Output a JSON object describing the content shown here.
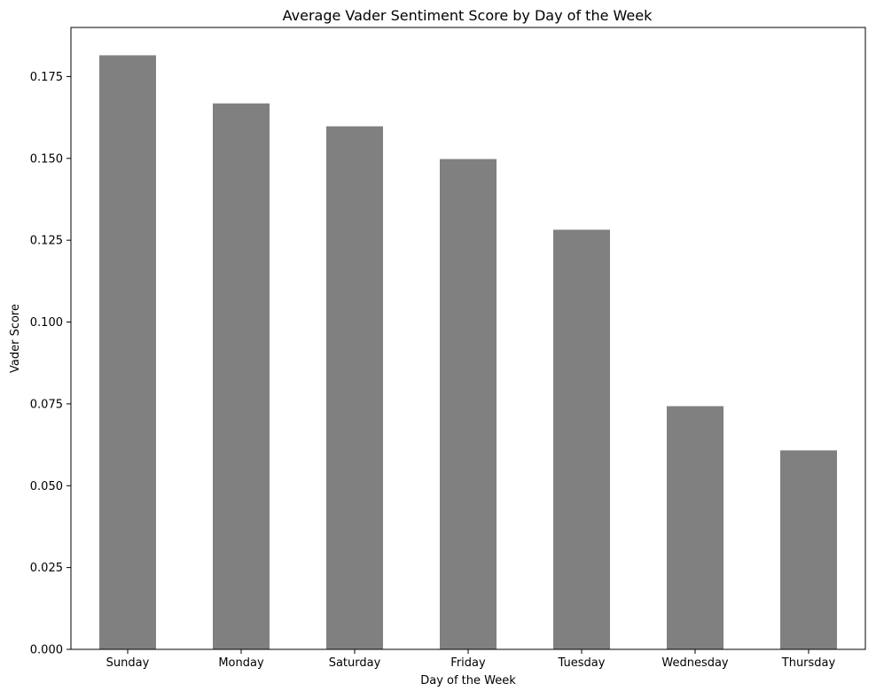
{
  "chart_data": {
    "type": "bar",
    "title": "Average Vader Sentiment Score by Day of the Week",
    "xlabel": "Day of the Week",
    "ylabel": "Vader Score",
    "categories": [
      "Sunday",
      "Monday",
      "Saturday",
      "Friday",
      "Tuesday",
      "Wednesday",
      "Thursday"
    ],
    "values": [
      0.1815,
      0.1668,
      0.1598,
      0.1498,
      0.1282,
      0.0743,
      0.0608
    ],
    "ylim": [
      0,
      0.19
    ],
    "yticks": [
      0.0,
      0.025,
      0.05,
      0.075,
      0.1,
      0.125,
      0.15,
      0.175
    ],
    "ytick_labels": [
      "0.000",
      "0.025",
      "0.050",
      "0.075",
      "0.100",
      "0.125",
      "0.150",
      "0.175"
    ],
    "bar_color": "#808080",
    "grid": false,
    "legend": "none"
  }
}
